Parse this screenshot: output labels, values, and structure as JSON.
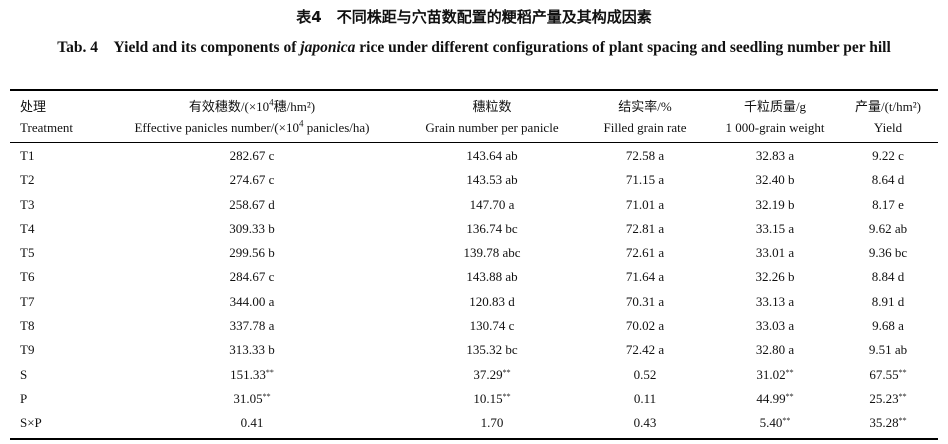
{
  "caption": {
    "cn": "表4　不同株距与穴苗数配置的粳稻产量及其构成因素",
    "en_pre": "Tab. 4　Yield and its components of ",
    "en_ital": "japonica",
    "en_post": " rice under different configurations of plant spacing and seedling number per hill"
  },
  "headers": [
    {
      "cn": "处理",
      "en": "Treatment"
    },
    {
      "cn_pre": "有效穗数/(×10",
      "cn_sup": "4",
      "cn_post": "穗/hm²)",
      "en_pre": "Effective panicles number/(×10",
      "en_sup": "4",
      "en_post": " panicles/ha)"
    },
    {
      "cn": "穗粒数",
      "en": "Grain number per panicle"
    },
    {
      "cn": "结实率/%",
      "en": "Filled grain rate"
    },
    {
      "cn": "千粒质量/g",
      "en": "1 000-grain weight"
    },
    {
      "cn": "产量/(t/hm²)",
      "en": "Yield"
    }
  ],
  "rows": [
    {
      "t": "T1",
      "v": [
        "282.67 c",
        "143.64 ab",
        "72.58 a",
        "32.83 a",
        "9.22 c"
      ],
      "s": [
        "",
        "",
        "",
        "",
        ""
      ]
    },
    {
      "t": "T2",
      "v": [
        "274.67 c",
        "143.53 ab",
        "71.15 a",
        "32.40 b",
        "8.64 d"
      ],
      "s": [
        "",
        "",
        "",
        "",
        ""
      ]
    },
    {
      "t": "T3",
      "v": [
        "258.67 d",
        "147.70 a",
        "71.01 a",
        "32.19 b",
        "8.17 e"
      ],
      "s": [
        "",
        "",
        "",
        "",
        ""
      ]
    },
    {
      "t": "T4",
      "v": [
        "309.33 b",
        "136.74 bc",
        "72.81 a",
        "33.15 a",
        "9.62 ab"
      ],
      "s": [
        "",
        "",
        "",
        "",
        ""
      ]
    },
    {
      "t": "T5",
      "v": [
        "299.56 b",
        "139.78 abc",
        "72.61 a",
        "33.01 a",
        "9.36 bc"
      ],
      "s": [
        "",
        "",
        "",
        "",
        ""
      ]
    },
    {
      "t": "T6",
      "v": [
        "284.67 c",
        "143.88 ab",
        "71.64 a",
        "32.26 b",
        "8.84 d"
      ],
      "s": [
        "",
        "",
        "",
        "",
        ""
      ]
    },
    {
      "t": "T7",
      "v": [
        "344.00 a",
        "120.83 d",
        "70.31 a",
        "33.13 a",
        "8.91 d"
      ],
      "s": [
        "",
        "",
        "",
        "",
        ""
      ]
    },
    {
      "t": "T8",
      "v": [
        "337.78 a",
        "130.74 c",
        "70.02 a",
        "33.03 a",
        "9.68 a"
      ],
      "s": [
        "",
        "",
        "",
        "",
        ""
      ]
    },
    {
      "t": "T9",
      "v": [
        "313.33 b",
        "135.32 bc",
        "72.42 a",
        "32.80 a",
        "9.51 ab"
      ],
      "s": [
        "",
        "",
        "",
        "",
        ""
      ]
    },
    {
      "t": "S",
      "v": [
        "151.33",
        "37.29",
        "0.52",
        "31.02",
        "67.55"
      ],
      "s": [
        "**",
        "**",
        "",
        "**",
        "**"
      ]
    },
    {
      "t": "P",
      "v": [
        "31.05",
        "10.15",
        "0.11",
        "44.99",
        "25.23"
      ],
      "s": [
        "**",
        "**",
        "",
        "**",
        "**"
      ]
    },
    {
      "t": "S×P",
      "v": [
        "0.41",
        "1.70",
        "0.43",
        "5.40",
        "35.28"
      ],
      "s": [
        "",
        "",
        "",
        "**",
        "**"
      ]
    }
  ]
}
